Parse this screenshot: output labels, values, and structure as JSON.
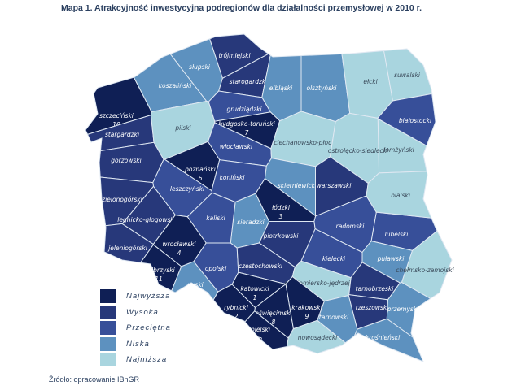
{
  "title": "Mapa 1. Atrakcyjność inwestycyjna podregionów dla działalności przemysłowej w 2010 r.",
  "source": "Źródło: opracowanie IBnGR",
  "legend": [
    {
      "label": "Najwyższa",
      "color": "#0f1f55"
    },
    {
      "label": "Wysoka",
      "color": "#27387a"
    },
    {
      "label": "Przeciętna",
      "color": "#374f99"
    },
    {
      "label": "Niska",
      "color": "#5d91bf"
    },
    {
      "label": "Najniższa",
      "color": "#a9d5df"
    }
  ],
  "regions": [
    {
      "name": "szczeciński",
      "level": 0,
      "rank": "10"
    },
    {
      "name": "stargardzki",
      "level": 1
    },
    {
      "name": "koszaliński",
      "level": 3
    },
    {
      "name": "słupski",
      "level": 3
    },
    {
      "name": "trójmiejski",
      "level": 1
    },
    {
      "name": "starogardzki",
      "level": 1
    },
    {
      "name": "elbląski",
      "level": 3
    },
    {
      "name": "olsztyński",
      "level": 3
    },
    {
      "name": "ełcki",
      "level": 4
    },
    {
      "name": "suwalski",
      "level": 4
    },
    {
      "name": "białostocki",
      "level": 2
    },
    {
      "name": "łomżyński",
      "level": 4
    },
    {
      "name": "pilski",
      "level": 4
    },
    {
      "name": "grudziądzki",
      "level": 2
    },
    {
      "name": "bydgosko-toruński",
      "level": 0,
      "rank": "7"
    },
    {
      "name": "włocławski",
      "level": 2
    },
    {
      "name": "ciechanowsko-płocki",
      "level": 4
    },
    {
      "name": "ostrołęcko-siedlecki",
      "level": 4
    },
    {
      "name": "gorzowski",
      "level": 1
    },
    {
      "name": "poznański",
      "level": 0,
      "rank": "6"
    },
    {
      "name": "koniński",
      "level": 2
    },
    {
      "name": "leszczyński",
      "level": 2
    },
    {
      "name": "zielonogórski",
      "level": 1
    },
    {
      "name": "skierniewicki",
      "level": 3
    },
    {
      "name": "warszawski",
      "level": 1
    },
    {
      "name": "łódzki",
      "level": 0,
      "rank": "3"
    },
    {
      "name": "sieradzki",
      "level": 3
    },
    {
      "name": "kaliski",
      "level": 2
    },
    {
      "name": "legnicko-głogowski",
      "level": 1
    },
    {
      "name": "piotrkowski",
      "level": 1
    },
    {
      "name": "radomski",
      "level": 2
    },
    {
      "name": "lubelski",
      "level": 2
    },
    {
      "name": "bialski",
      "level": 4
    },
    {
      "name": "wrocławski",
      "level": 0,
      "rank": "4"
    },
    {
      "name": "jeleniogórski",
      "level": 1
    },
    {
      "name": "wałbrzyski",
      "level": 0,
      "rank": "11"
    },
    {
      "name": "opolski",
      "level": 2
    },
    {
      "name": "nyski",
      "level": 3
    },
    {
      "name": "częstochowski",
      "level": 1
    },
    {
      "name": "kielecki",
      "level": 2
    },
    {
      "name": "puławski",
      "level": 3
    },
    {
      "name": "chełmsko-zamojski",
      "level": 4
    },
    {
      "name": "sandomiersko-jędrzejowski",
      "level": 4
    },
    {
      "name": "tarnobrzeski",
      "level": 1
    },
    {
      "name": "katowicki",
      "level": 0,
      "rank": "1"
    },
    {
      "name": "rybnicki",
      "level": 0,
      "rank": "2"
    },
    {
      "name": "oświęcimski",
      "level": 0,
      "rank": "8"
    },
    {
      "name": "krakowski",
      "level": 0,
      "rank": "9"
    },
    {
      "name": "bielski",
      "level": 0,
      "rank": "5"
    },
    {
      "name": "tarnowski",
      "level": 3
    },
    {
      "name": "rzeszowski",
      "level": 1
    },
    {
      "name": "przemyski",
      "level": 3
    },
    {
      "name": "nowosądecki",
      "level": 4
    },
    {
      "name": "krośnieński",
      "level": 3
    }
  ]
}
